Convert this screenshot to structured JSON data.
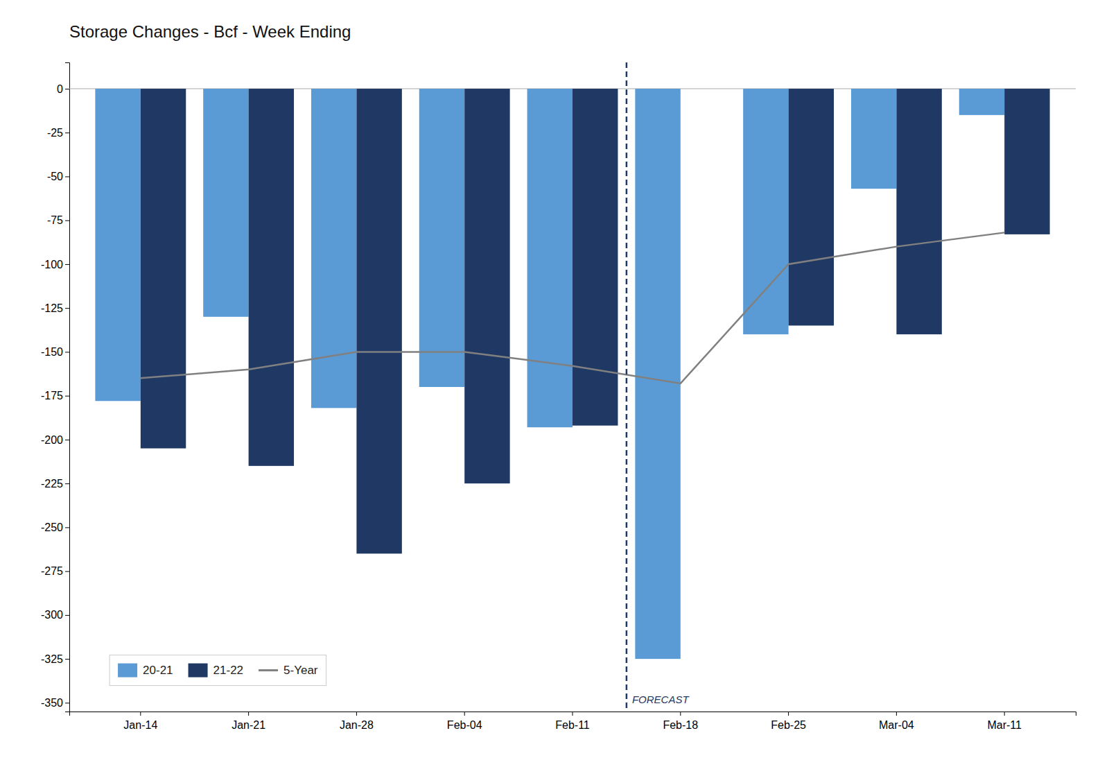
{
  "chart_data": {
    "type": "bar",
    "title": "Storage Changes - Bcf - Week Ending",
    "categories": [
      "Jan-14",
      "Jan-21",
      "Jan-28",
      "Feb-04",
      "Feb-11",
      "Feb-18",
      "Feb-25",
      "Mar-04",
      "Mar-11"
    ],
    "series": [
      {
        "name": "20-21",
        "color": "#5B9BD5",
        "values": [
          -178,
          -130,
          -182,
          -170,
          -193,
          -325,
          -140,
          -57,
          -15
        ]
      },
      {
        "name": "21-22",
        "color": "#1F3864",
        "values": [
          -205,
          -215,
          -265,
          -225,
          -192,
          null,
          -135,
          -140,
          -83
        ]
      },
      {
        "name": "5-Year",
        "type": "line",
        "color": "#808080",
        "values": [
          -165,
          -160,
          -150,
          -150,
          -158,
          -168,
          -100,
          -90,
          -82
        ]
      }
    ],
    "ylim": [
      -355,
      15
    ],
    "yticks": [
      0,
      -25,
      -50,
      -75,
      -100,
      -125,
      -150,
      -175,
      -200,
      -225,
      -250,
      -275,
      -300,
      -325,
      -350
    ],
    "grid": false,
    "legend": "lower left",
    "annotations": [
      {
        "text": "FORECAST",
        "x": "Feb-18",
        "color": "#1F3864"
      }
    ]
  }
}
